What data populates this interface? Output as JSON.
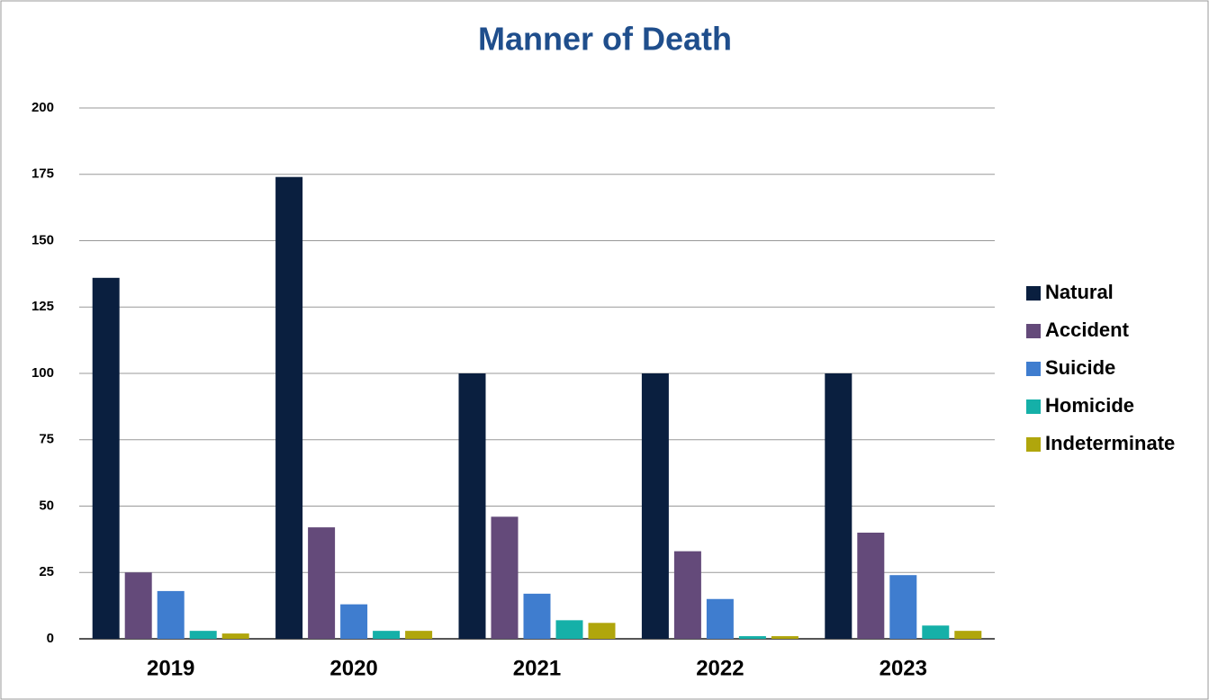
{
  "chart_data": {
    "type": "bar",
    "title": "Manner of Death",
    "categories": [
      "2019",
      "2020",
      "2021",
      "2022",
      "2023"
    ],
    "series": [
      {
        "name": "Natural",
        "color": "#0a1f3f",
        "values": [
          136,
          174,
          100,
          100,
          100
        ]
      },
      {
        "name": "Accident",
        "color": "#644a7a",
        "values": [
          25,
          42,
          46,
          33,
          40
        ]
      },
      {
        "name": "Suicide",
        "color": "#3f7dcf",
        "values": [
          18,
          13,
          17,
          15,
          24
        ]
      },
      {
        "name": "Homicide",
        "color": "#15b0a8",
        "values": [
          3,
          3,
          7,
          1,
          5
        ]
      },
      {
        "name": "Indeterminate",
        "color": "#b0a60c",
        "values": [
          2,
          3,
          6,
          1,
          3
        ]
      }
    ],
    "ylim": [
      0,
      200
    ],
    "yticks": [
      0,
      25,
      50,
      75,
      100,
      125,
      150,
      175,
      200
    ],
    "grid": true,
    "legend": "right"
  }
}
